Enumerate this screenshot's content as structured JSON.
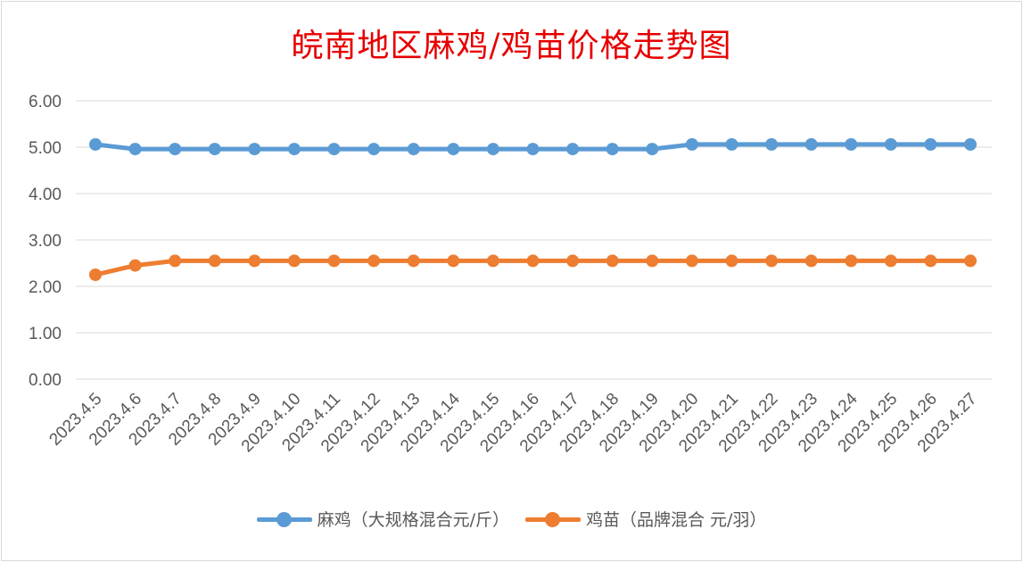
{
  "title": "皖南地区麻鸡/鸡苗价格走势图",
  "chart_data": {
    "type": "line",
    "title": "皖南地区麻鸡/鸡苗价格走势图",
    "xlabel": "",
    "ylabel": "",
    "ylim": [
      0,
      6
    ],
    "yticks": [
      "0.00",
      "1.00",
      "2.00",
      "3.00",
      "4.00",
      "5.00",
      "6.00"
    ],
    "grid": true,
    "legend_position": "bottom",
    "categories": [
      "2023.4.5",
      "2023.4.6",
      "2023.4.7",
      "2023.4.8",
      "2023.4.9",
      "2023.4.10",
      "2023.4.11",
      "2023.4.12",
      "2023.4.13",
      "2023.4.14",
      "2023.4.15",
      "2023.4.16",
      "2023.4.17",
      "2023.4.18",
      "2023.4.19",
      "2023.4.20",
      "2023.4.21",
      "2023.4.22",
      "2023.4.23",
      "2023.4.24",
      "2023.4.25",
      "2023.4.26",
      "2023.4.27"
    ],
    "series": [
      {
        "name": "麻鸡（大规格混合元/斤）",
        "color": "#5b9bd5",
        "values": [
          5.06,
          4.96,
          4.96,
          4.96,
          4.96,
          4.96,
          4.96,
          4.96,
          4.96,
          4.96,
          4.96,
          4.96,
          4.96,
          4.96,
          4.96,
          5.06,
          5.06,
          5.06,
          5.06,
          5.06,
          5.06,
          5.06,
          5.06
        ]
      },
      {
        "name": "鸡苗（品牌混合 元/羽）",
        "color": "#ed7d31",
        "values": [
          2.25,
          2.45,
          2.55,
          2.55,
          2.55,
          2.55,
          2.55,
          2.55,
          2.55,
          2.55,
          2.55,
          2.55,
          2.55,
          2.55,
          2.55,
          2.55,
          2.55,
          2.55,
          2.55,
          2.55,
          2.55,
          2.55,
          2.55
        ]
      }
    ]
  }
}
